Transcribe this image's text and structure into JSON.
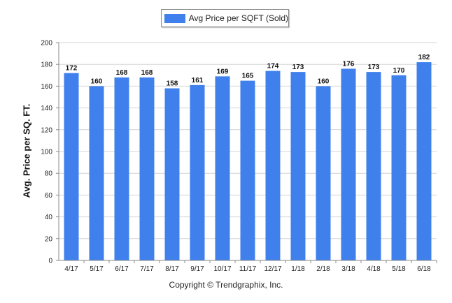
{
  "chart_data": {
    "type": "bar",
    "categories": [
      "4/17",
      "5/17",
      "6/17",
      "7/17",
      "8/17",
      "9/17",
      "10/17",
      "11/17",
      "12/17",
      "1/18",
      "2/18",
      "3/18",
      "4/18",
      "5/18",
      "6/18"
    ],
    "series": [
      {
        "name": "Avg Price per SQFT (Sold)",
        "values": [
          172,
          160,
          168,
          168,
          158,
          161,
          169,
          165,
          174,
          173,
          160,
          176,
          173,
          170,
          182
        ]
      }
    ],
    "ylabel": "Avg. Price per SQ. FT.",
    "xlabel": "",
    "ylim": [
      0,
      200
    ],
    "yticks": [
      0,
      20,
      40,
      60,
      80,
      100,
      120,
      140,
      160,
      180,
      200
    ],
    "grid": true,
    "legend_position": "top-center",
    "bar_color": "#4080EC",
    "footer": "Copyright © Trendgraphix, Inc."
  }
}
